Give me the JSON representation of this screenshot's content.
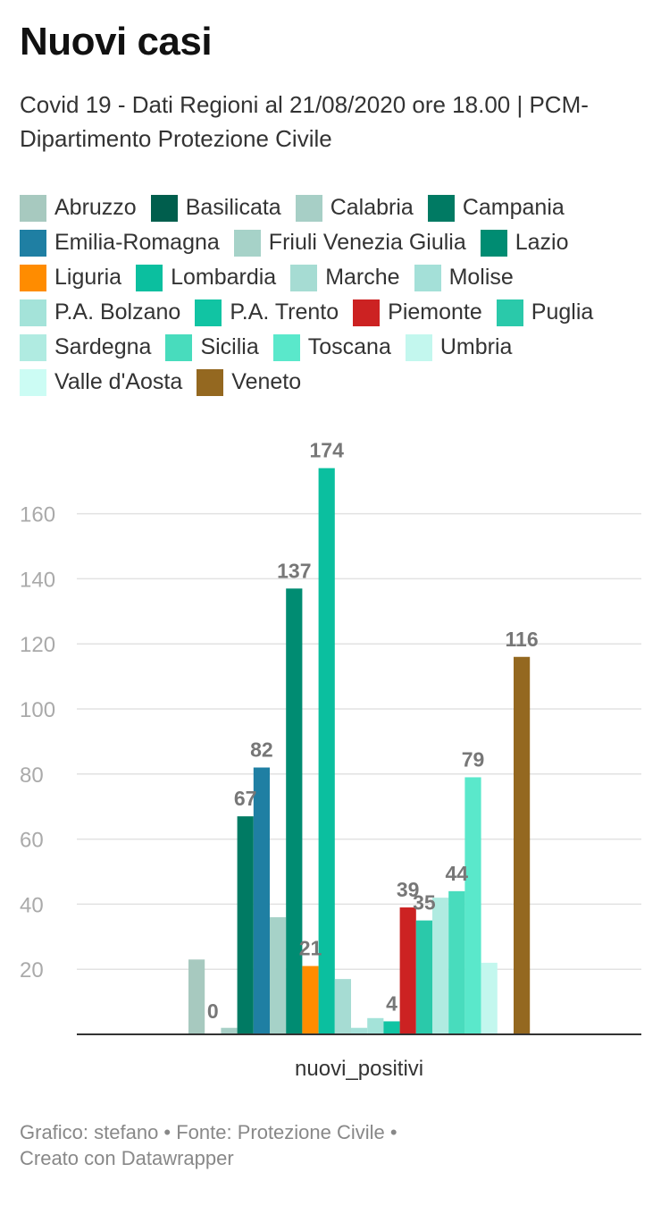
{
  "title": "Nuovi casi",
  "subtitle": "Covid 19 - Dati Regioni al 21/08/2020 ore 18.00 | PCM- Dipartimento Protezione Civile",
  "footer": {
    "line1": "Grafico: stefano • Fonte: Protezione Civile •",
    "line2": "Creato con Datawrapper"
  },
  "chart_data": {
    "type": "bar",
    "title": "Nuovi casi",
    "xlabel": "",
    "ylabel": "",
    "categories": [
      "nuovi_positivi"
    ],
    "ylim": [
      0,
      174
    ],
    "yticks": [
      20,
      40,
      60,
      80,
      100,
      120,
      140,
      160
    ],
    "grid": true,
    "legend": "top",
    "series": [
      {
        "name": "Abruzzo",
        "values": [
          23
        ],
        "color": "#a7c9bf",
        "label": ""
      },
      {
        "name": "Basilicata",
        "values": [
          0
        ],
        "color": "#005e4d",
        "label": "0"
      },
      {
        "name": "Calabria",
        "values": [
          2
        ],
        "color": "#a7cfc6",
        "label": ""
      },
      {
        "name": "Campania",
        "values": [
          67
        ],
        "color": "#007a63",
        "label": "67"
      },
      {
        "name": "Emilia-Romagna",
        "values": [
          82
        ],
        "color": "#1f7fa3",
        "label": "82"
      },
      {
        "name": "Friuli Venezia Giulia",
        "values": [
          36
        ],
        "color": "#a6d2c8",
        "label": ""
      },
      {
        "name": "Lazio",
        "values": [
          137
        ],
        "color": "#008c72",
        "label": "137"
      },
      {
        "name": "Liguria",
        "values": [
          21
        ],
        "color": "#ff8c00",
        "label": "21"
      },
      {
        "name": "Lombardia",
        "values": [
          174
        ],
        "color": "#0bbf9f",
        "label": "174"
      },
      {
        "name": "Marche",
        "values": [
          17
        ],
        "color": "#a6dcd3",
        "label": ""
      },
      {
        "name": "Molise",
        "values": [
          2
        ],
        "color": "#a4e0d8",
        "label": ""
      },
      {
        "name": "P.A. Bolzano",
        "values": [
          5
        ],
        "color": "#a4e3d9",
        "label": ""
      },
      {
        "name": "P.A. Trento",
        "values": [
          4
        ],
        "color": "#11c4a3",
        "label": "4"
      },
      {
        "name": "Piemonte",
        "values": [
          39
        ],
        "color": "#cc2222",
        "label": "39"
      },
      {
        "name": "Puglia",
        "values": [
          35
        ],
        "color": "#2ac9aa",
        "label": "35"
      },
      {
        "name": "Sardegna",
        "values": [
          42
        ],
        "color": "#b0ebe1",
        "label": ""
      },
      {
        "name": "Sicilia",
        "values": [
          44
        ],
        "color": "#48dcbd",
        "label": "44"
      },
      {
        "name": "Toscana",
        "values": [
          79
        ],
        "color": "#5ae8cb",
        "label": "79"
      },
      {
        "name": "Umbria",
        "values": [
          22
        ],
        "color": "#c3f7ee",
        "label": ""
      },
      {
        "name": "Valle d'Aosta",
        "values": [
          0
        ],
        "color": "#ccfcf4",
        "label": ""
      },
      {
        "name": "Veneto",
        "values": [
          116
        ],
        "color": "#946820",
        "label": "116"
      }
    ]
  }
}
